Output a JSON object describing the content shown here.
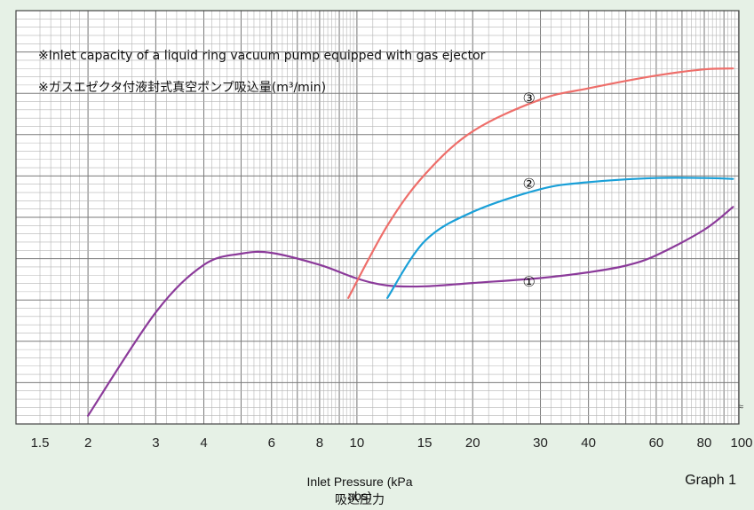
{
  "chart_data": {
    "type": "line",
    "x_scale": "log",
    "xlim": [
      1.5,
      100
    ],
    "x_ticks": [
      "1.5",
      "2",
      "3",
      "4",
      "6",
      "8",
      "10",
      "15",
      "20",
      "30",
      "40",
      "60",
      "80",
      "100"
    ],
    "xlabel": "Inlet Pressure (kPa abs)",
    "xlabel_ja": "吸込圧力",
    "notes": [
      "※Inlet capacity of a liquid ring vacuum pump equipped with gas ejector",
      "※ガスエゼクタ付液封式真空ポンプ吸込量(m³/min)"
    ],
    "graph_label": "Graph 1",
    "break_mark": "≈",
    "grid": true,
    "ylim": [
      0,
      1
    ],
    "series": [
      {
        "name": "①",
        "color": "#8b3a9a",
        "x": [
          2,
          3,
          4,
          5,
          6,
          8,
          10,
          12,
          15,
          20,
          30,
          40,
          50,
          60,
          80,
          95
        ],
        "y": [
          0.02,
          0.27,
          0.385,
          0.412,
          0.414,
          0.385,
          0.352,
          0.335,
          0.333,
          0.341,
          0.353,
          0.367,
          0.383,
          0.408,
          0.47,
          0.525
        ]
      },
      {
        "name": "②",
        "color": "#1aa0d8",
        "x": [
          12,
          15,
          20,
          30,
          40,
          60,
          80,
          95
        ],
        "y": [
          0.305,
          0.442,
          0.513,
          0.568,
          0.585,
          0.595,
          0.595,
          0.593
        ]
      },
      {
        "name": "③",
        "color": "#ee6e6a",
        "x": [
          9.5,
          12,
          15,
          20,
          30,
          40,
          60,
          80,
          95
        ],
        "y": [
          0.305,
          0.48,
          0.603,
          0.708,
          0.785,
          0.812,
          0.843,
          0.858,
          0.86
        ]
      }
    ]
  }
}
